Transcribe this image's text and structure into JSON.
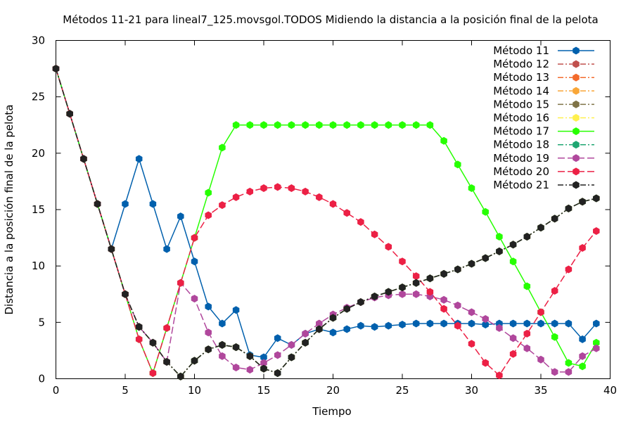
{
  "chart_data": {
    "type": "line",
    "title": "Métodos 11-21 para lineal7_125.movsgol.TODOS Midiendo la distancia a la posición final de la pelota",
    "xlabel": "Tiempo",
    "ylabel": "Distancia a la posición final de la pelota",
    "xlim": [
      0,
      40
    ],
    "ylim": [
      0,
      30
    ],
    "xticks": [
      0,
      5,
      10,
      15,
      20,
      25,
      30,
      35,
      40
    ],
    "yticks": [
      0,
      5,
      10,
      15,
      20,
      25,
      30
    ],
    "grid": false,
    "legend_position": "top-right",
    "x": [
      0,
      1,
      2,
      3,
      4,
      5,
      6,
      7,
      8,
      9,
      10,
      11,
      12,
      13,
      14,
      15,
      16,
      17,
      18,
      19,
      20,
      21,
      22,
      23,
      24,
      25,
      26,
      27,
      28,
      29,
      30,
      31,
      32,
      33,
      34,
      35,
      36,
      37,
      38,
      39
    ],
    "series": [
      {
        "name": "Método 11",
        "color": "#0060ad",
        "dash": "",
        "values": [
          27.5,
          23.5,
          19.5,
          15.5,
          11.5,
          15.5,
          19.5,
          15.5,
          11.5,
          14.4,
          10.4,
          6.4,
          4.9,
          6.1,
          2.1,
          1.9,
          3.6,
          3.0,
          4.0,
          4.4,
          4.1,
          4.4,
          4.7,
          4.6,
          4.7,
          4.8,
          4.9,
          4.9,
          4.9,
          4.9,
          4.9,
          4.8,
          4.9,
          4.9,
          4.9,
          4.9,
          4.9,
          4.9,
          3.5,
          4.9
        ]
      },
      {
        "name": "Método 12",
        "color": "#c0504d",
        "dash": "8,3,2,3",
        "values": [
          27.5,
          23.5,
          19.5,
          15.5,
          11.5,
          7.5,
          4.6,
          3.2,
          1.5,
          0.2,
          1.6,
          2.6,
          3.0,
          2.8,
          2.0,
          0.9,
          0.5,
          1.9,
          3.2,
          4.4,
          5.4,
          6.2,
          6.8,
          7.3,
          7.7,
          8.1,
          8.5,
          8.9,
          9.3,
          9.7,
          10.2,
          10.7,
          11.3,
          11.9,
          12.6,
          13.4,
          14.2,
          15.1,
          15.7,
          16.0
        ]
      },
      {
        "name": "Método 13",
        "color": "#f36b2c",
        "dash": "8,3,2,3",
        "values": [
          27.5,
          23.5,
          19.5,
          15.5,
          11.5,
          7.5,
          4.6,
          3.2,
          1.5,
          0.2,
          1.6,
          2.6,
          3.0,
          2.8,
          2.0,
          0.9,
          0.5,
          1.9,
          3.2,
          4.4,
          5.4,
          6.2,
          6.8,
          7.3,
          7.7,
          8.1,
          8.5,
          8.9,
          9.3,
          9.7,
          10.2,
          10.7,
          11.3,
          11.9,
          12.6,
          13.4,
          14.2,
          15.1,
          15.7,
          16.0
        ]
      },
      {
        "name": "Método 14",
        "color": "#f9a637",
        "dash": "8,3,2,3",
        "values": [
          27.5,
          23.5,
          19.5,
          15.5,
          11.5,
          7.5,
          4.6,
          3.2,
          1.5,
          0.2,
          1.6,
          2.6,
          3.0,
          2.8,
          2.0,
          0.9,
          0.5,
          1.9,
          3.2,
          4.4,
          5.4,
          6.2,
          6.8,
          7.3,
          7.7,
          8.1,
          8.5,
          8.9,
          9.3,
          9.7,
          10.2,
          10.7,
          11.3,
          11.9,
          12.6,
          13.4,
          14.2,
          15.1,
          15.7,
          16.0
        ]
      },
      {
        "name": "Método 15",
        "color": "#7f7346",
        "dash": "8,3,2,3",
        "values": [
          27.5,
          23.5,
          19.5,
          15.5,
          11.5,
          7.5,
          4.6,
          3.2,
          1.5,
          0.2,
          1.6,
          2.6,
          3.0,
          2.8,
          2.0,
          0.9,
          0.5,
          1.9,
          3.2,
          4.4,
          5.4,
          6.2,
          6.8,
          7.3,
          7.7,
          8.1,
          8.5,
          8.9,
          9.3,
          9.7,
          10.2,
          10.7,
          11.3,
          11.9,
          12.6,
          13.4,
          14.2,
          15.1,
          15.7,
          16.0
        ]
      },
      {
        "name": "Método 16",
        "color": "#fff04d",
        "dash": "8,3,2,3",
        "values": [
          27.5,
          23.5,
          19.5,
          15.5,
          11.5,
          7.5,
          4.6,
          3.2,
          1.5,
          0.2,
          1.6,
          2.6,
          3.0,
          2.8,
          2.0,
          0.9,
          0.5,
          1.9,
          3.2,
          4.4,
          5.4,
          6.2,
          6.8,
          7.3,
          7.7,
          8.1,
          8.5,
          8.9,
          9.3,
          9.7,
          10.2,
          10.7,
          11.3,
          11.9,
          12.6,
          13.4,
          14.2,
          15.1,
          15.7,
          16.0
        ]
      },
      {
        "name": "Método 17",
        "color": "#26ff00",
        "dash": "",
        "values": [
          27.5,
          23.5,
          19.5,
          15.5,
          11.5,
          7.5,
          3.5,
          0.5,
          4.5,
          8.5,
          12.5,
          16.5,
          20.5,
          22.5,
          22.5,
          22.5,
          22.5,
          22.5,
          22.5,
          22.5,
          22.5,
          22.5,
          22.5,
          22.5,
          22.5,
          22.5,
          22.5,
          22.5,
          21.1,
          19.0,
          16.9,
          14.8,
          12.6,
          10.4,
          8.2,
          5.9,
          3.7,
          1.4,
          1.1,
          3.2
        ]
      },
      {
        "name": "Método 18",
        "color": "#1ea672",
        "dash": "8,3,2,3",
        "values": [
          27.5,
          23.5,
          19.5,
          15.5,
          11.5,
          7.5,
          4.6,
          3.2,
          1.5,
          0.2,
          1.6,
          2.6,
          3.0,
          2.8,
          2.0,
          0.9,
          0.5,
          1.9,
          3.2,
          4.4,
          5.4,
          6.2,
          6.8,
          7.3,
          7.7,
          8.1,
          8.5,
          8.9,
          9.3,
          9.7,
          10.2,
          10.7,
          11.3,
          11.9,
          12.6,
          13.4,
          14.2,
          15.1,
          15.7,
          16.0
        ]
      },
      {
        "name": "Método 19",
        "color": "#b0479c",
        "dash": "10,4",
        "values": [
          27.5,
          23.5,
          19.5,
          15.5,
          11.5,
          7.5,
          4.6,
          3.2,
          1.5,
          8.5,
          7.1,
          4.1,
          2.0,
          1.0,
          0.8,
          1.4,
          2.1,
          3.0,
          4.0,
          4.9,
          5.7,
          6.3,
          6.8,
          7.2,
          7.4,
          7.5,
          7.5,
          7.3,
          7.0,
          6.5,
          5.9,
          5.3,
          4.5,
          3.6,
          2.7,
          1.7,
          0.6,
          0.6,
          2.0,
          2.7
        ]
      },
      {
        "name": "Método 20",
        "color": "#ec2045",
        "dash": "10,4",
        "values": [
          27.5,
          23.5,
          19.5,
          15.5,
          11.5,
          7.5,
          3.5,
          0.5,
          4.5,
          8.5,
          12.5,
          14.5,
          15.4,
          16.1,
          16.6,
          16.9,
          17.0,
          16.9,
          16.6,
          16.1,
          15.5,
          14.7,
          13.9,
          12.8,
          11.7,
          10.4,
          9.1,
          7.7,
          6.2,
          4.7,
          3.1,
          1.4,
          0.3,
          2.2,
          4.0,
          5.9,
          7.8,
          9.7,
          11.6,
          13.1
        ]
      },
      {
        "name": "Método 21",
        "color": "#222222",
        "dash": "8,3,2,3",
        "values": [
          27.5,
          23.5,
          19.5,
          15.5,
          11.5,
          7.5,
          4.6,
          3.2,
          1.5,
          0.2,
          1.6,
          2.6,
          3.0,
          2.8,
          2.0,
          0.9,
          0.5,
          1.9,
          3.2,
          4.4,
          5.4,
          6.2,
          6.8,
          7.3,
          7.7,
          8.1,
          8.5,
          8.9,
          9.3,
          9.7,
          10.2,
          10.7,
          11.3,
          11.9,
          12.6,
          13.4,
          14.2,
          15.1,
          15.7,
          16.0
        ]
      }
    ]
  }
}
